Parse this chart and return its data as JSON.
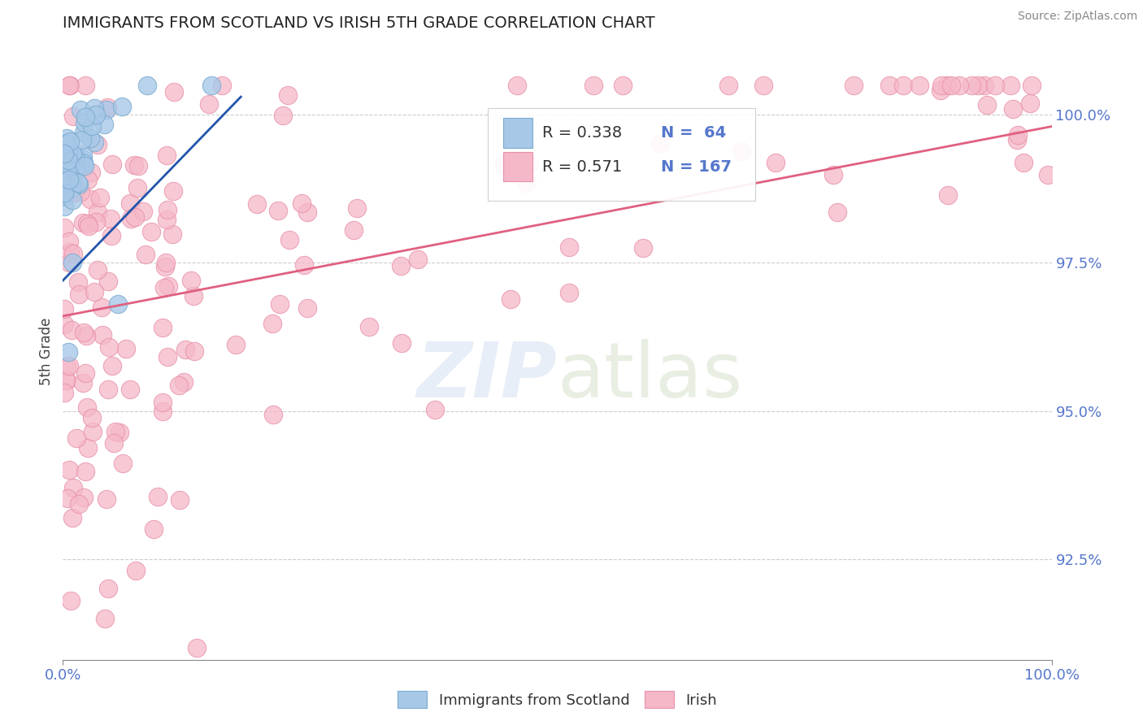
{
  "title": "IMMIGRANTS FROM SCOTLAND VS IRISH 5TH GRADE CORRELATION CHART",
  "source": "Source: ZipAtlas.com",
  "ylabel": "5th Grade",
  "xlim": [
    0.0,
    1.0
  ],
  "ylim": [
    0.908,
    1.012
  ],
  "yticks": [
    0.925,
    0.95,
    0.975,
    1.0
  ],
  "ytick_labels": [
    "92.5%",
    "95.0%",
    "97.5%",
    "100.0%"
  ],
  "scotland_color": "#a8c8e8",
  "ireland_color": "#f5b8c8",
  "scotland_edge": "#7aaace",
  "ireland_edge": "#e890a8",
  "scotland_line_color": "#2255aa",
  "ireland_line_color": "#e06080",
  "R_scotland": 0.338,
  "N_scotland": 64,
  "R_ireland": 0.571,
  "N_ireland": 167,
  "background_color": "#ffffff",
  "axis_label_color": "#5577cc",
  "title_fontsize": 14,
  "tick_label_color": "#5577cc"
}
